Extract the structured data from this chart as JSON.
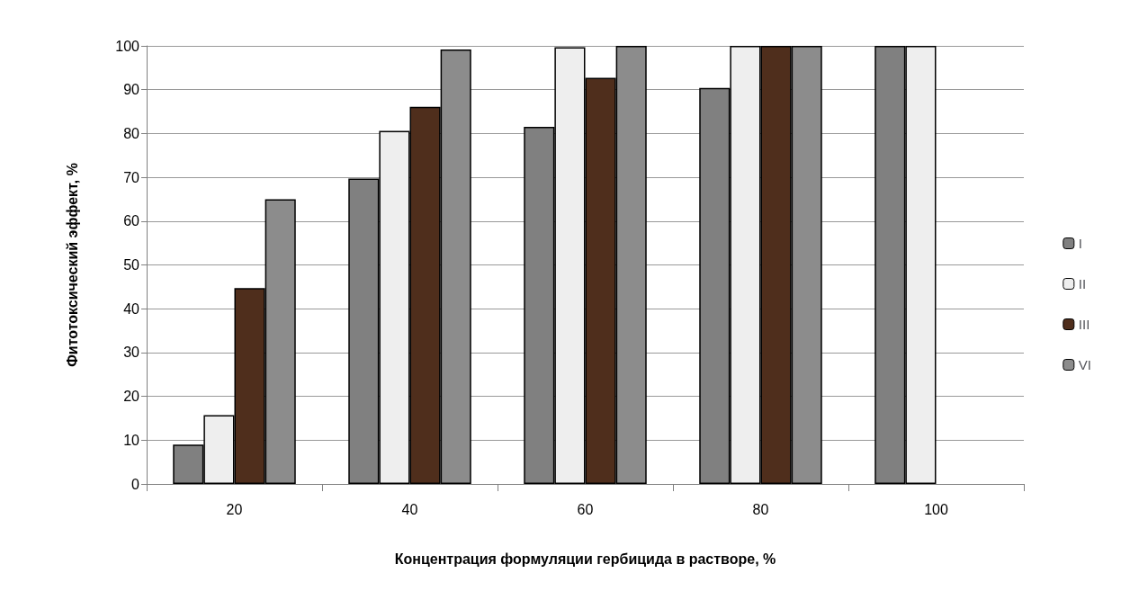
{
  "chart_data": {
    "type": "bar",
    "xlabel": "Концентрация формуляции гербицида в растворе, %",
    "ylabel": "Фитотоксический эффект, %",
    "categories": [
      "20",
      "40",
      "60",
      "80",
      "100"
    ],
    "series": [
      {
        "name": "I",
        "color": "#808080",
        "values": [
          9,
          69.7,
          81.5,
          90.4,
          100
        ]
      },
      {
        "name": "II",
        "color": "#eeeeee",
        "values": [
          15.7,
          80.6,
          99.7,
          100,
          100
        ]
      },
      {
        "name": "III",
        "color": "#4f2e1c",
        "values": [
          44.7,
          86.1,
          92.7,
          100,
          null
        ]
      },
      {
        "name": "VI",
        "color": "#8c8c8c",
        "values": [
          65,
          99.2,
          100,
          100,
          null
        ]
      }
    ],
    "ylim": [
      0,
      100
    ],
    "yticks": [
      0,
      10,
      20,
      30,
      40,
      50,
      60,
      70,
      80,
      90,
      100
    ],
    "grid": "y",
    "legend": "right"
  }
}
